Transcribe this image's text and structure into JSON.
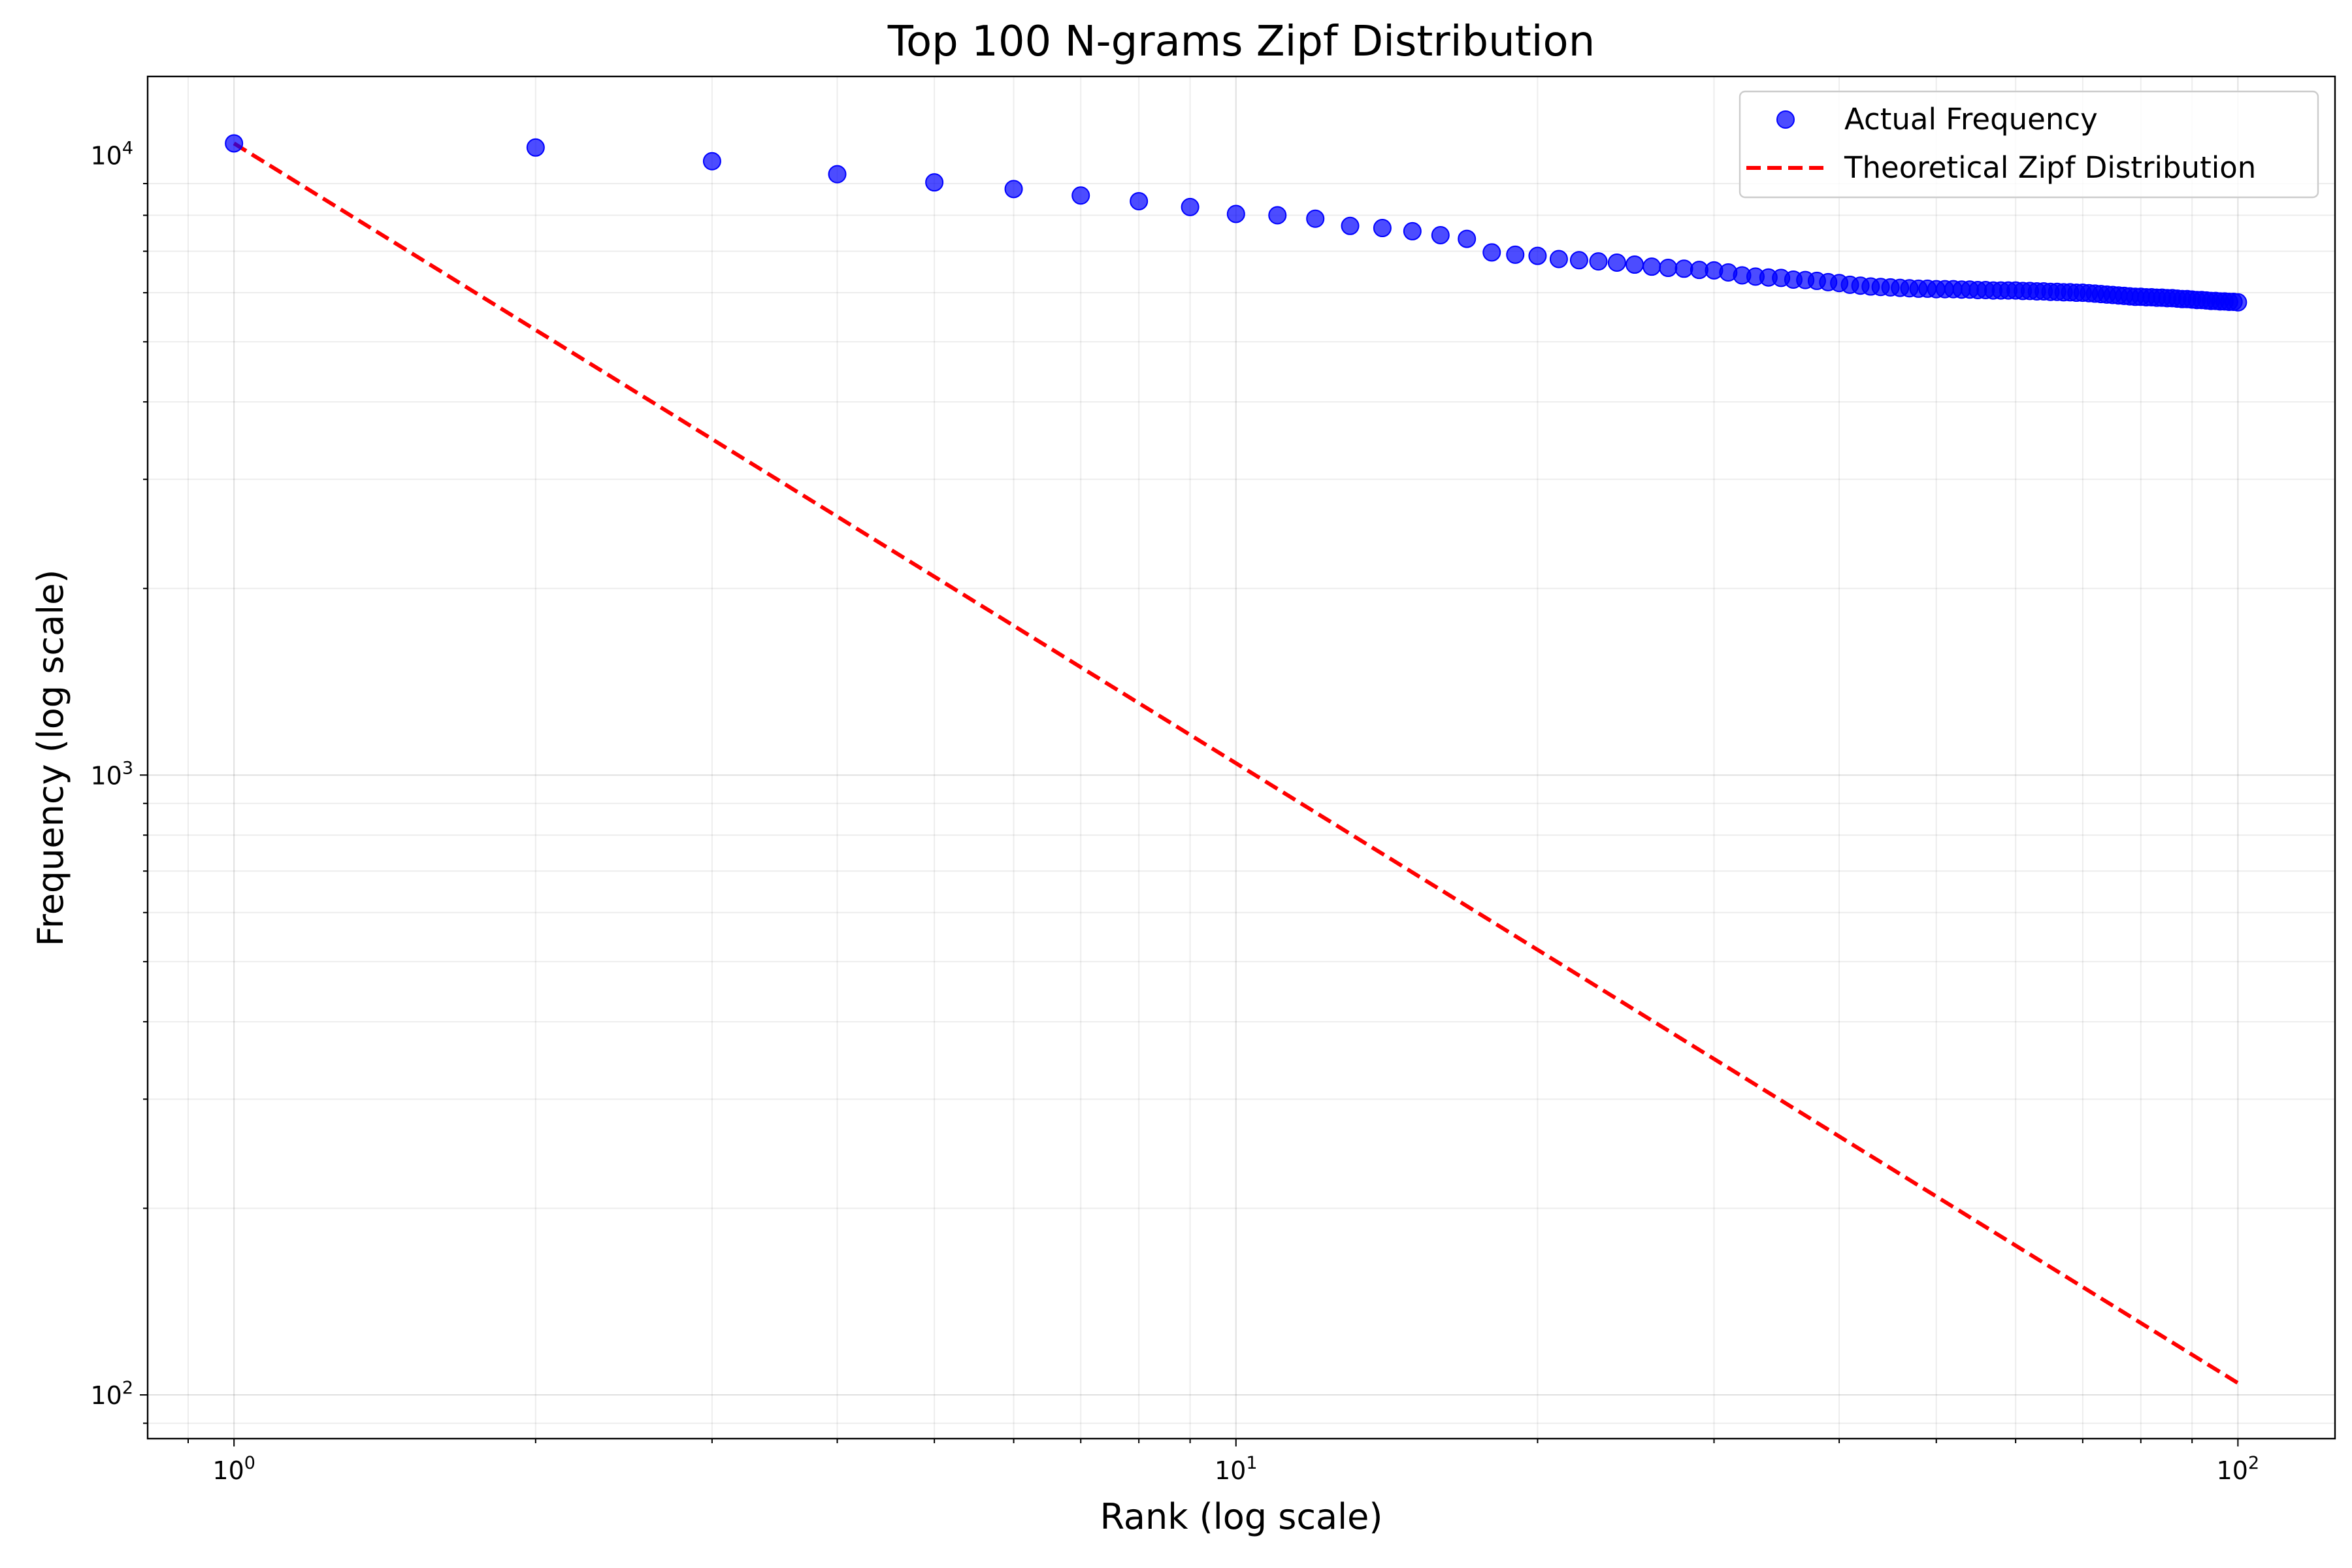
{
  "chart_data": {
    "type": "scatter",
    "title": "Top 100 N-grams Zipf Distribution",
    "xlabel": "Rank (log scale)",
    "ylabel": "Frequency (log scale)",
    "xscale": "log",
    "yscale": "log",
    "xlim": [
      0.82,
      125
    ],
    "ylim": [
      85,
      13400
    ],
    "grid": true,
    "legend": {
      "placement": "top-right"
    },
    "x_ticks": [
      {
        "value": 1,
        "base": "10",
        "exp": "0"
      },
      {
        "value": 10,
        "base": "10",
        "exp": "1"
      },
      {
        "value": 100,
        "base": "10",
        "exp": "2"
      }
    ],
    "y_ticks": [
      {
        "value": 100,
        "base": "10",
        "exp": "2"
      },
      {
        "value": 1000,
        "base": "10",
        "exp": "3"
      },
      {
        "value": 10000,
        "base": "10",
        "exp": "4"
      }
    ],
    "series": [
      {
        "name": "Actual Frequency",
        "kind": "scatter",
        "color": "#0000ff",
        "x": [
          1,
          2,
          3,
          4,
          5,
          6,
          7,
          8,
          9,
          10,
          11,
          12,
          13,
          14,
          15,
          16,
          17,
          18,
          19,
          20,
          21,
          22,
          23,
          24,
          25,
          26,
          27,
          28,
          29,
          30,
          31,
          32,
          33,
          34,
          35,
          36,
          37,
          38,
          39,
          40,
          41,
          42,
          43,
          44,
          45,
          46,
          47,
          48,
          49,
          50,
          51,
          52,
          53,
          54,
          55,
          56,
          57,
          58,
          59,
          60,
          61,
          62,
          63,
          64,
          65,
          66,
          67,
          68,
          69,
          70,
          71,
          72,
          73,
          74,
          75,
          76,
          77,
          78,
          79,
          80,
          81,
          82,
          83,
          84,
          85,
          86,
          87,
          88,
          89,
          90,
          91,
          92,
          93,
          94,
          95,
          96,
          97,
          98,
          99,
          100
        ],
        "values": [
          10450,
          10290,
          9780,
          9320,
          9040,
          8820,
          8610,
          8430,
          8250,
          8040,
          8000,
          7900,
          7690,
          7630,
          7540,
          7430,
          7330,
          6970,
          6910,
          6880,
          6800,
          6770,
          6740,
          6710,
          6660,
          6610,
          6580,
          6560,
          6530,
          6520,
          6470,
          6400,
          6370,
          6350,
          6340,
          6300,
          6290,
          6270,
          6240,
          6220,
          6180,
          6160,
          6140,
          6130,
          6120,
          6110,
          6100,
          6090,
          6090,
          6080,
          6080,
          6080,
          6070,
          6070,
          6060,
          6060,
          6050,
          6050,
          6050,
          6050,
          6040,
          6040,
          6030,
          6030,
          6020,
          6020,
          6010,
          6010,
          6000,
          6000,
          5990,
          5980,
          5970,
          5960,
          5950,
          5940,
          5930,
          5920,
          5910,
          5910,
          5900,
          5900,
          5890,
          5890,
          5880,
          5880,
          5870,
          5860,
          5860,
          5850,
          5840,
          5840,
          5830,
          5820,
          5820,
          5810,
          5810,
          5800,
          5800,
          5790
        ]
      },
      {
        "name": "Theoretical Zipf Distribution",
        "kind": "line",
        "color": "#ff0000",
        "dash": "dashed",
        "x": [
          1,
          100
        ],
        "values": [
          10450,
          104.5
        ]
      }
    ]
  }
}
